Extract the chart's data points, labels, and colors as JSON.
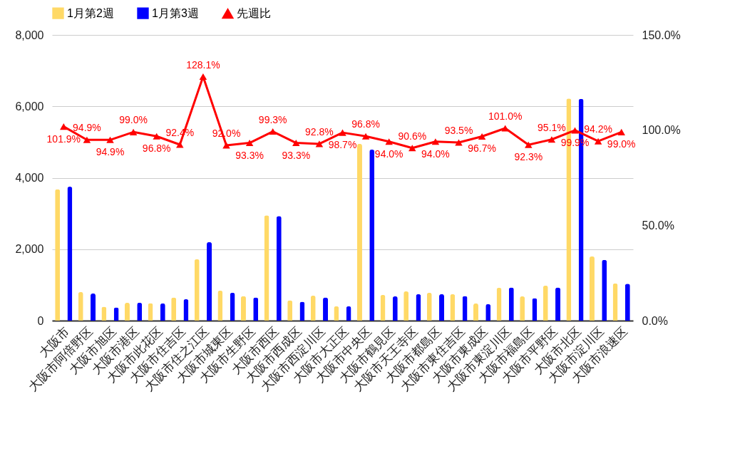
{
  "chart_data": {
    "type": "bar",
    "categories": [
      "大阪市",
      "大阪市阿倍野区",
      "大阪市旭区",
      "大阪市港区",
      "大阪市此花区",
      "大阪市住吉区",
      "大阪市住之江区",
      "大阪市城東区",
      "大阪市生野区",
      "大阪市西区",
      "大阪市西成区",
      "大阪市西淀川区",
      "大阪市大正区",
      "大阪市中央区",
      "大阪市鶴見区",
      "大阪市天王寺区",
      "大阪市都島区",
      "大阪市東住吉区",
      "大阪市東成区",
      "大阪市東淀川区",
      "大阪市福島区",
      "大阪市平野区",
      "大阪市北区",
      "大阪市淀川区",
      "大阪市浪速区"
    ],
    "series": [
      {
        "name": "1月第2週",
        "color": "#ffd966",
        "values": [
          3680,
          800,
          390,
          500,
          490,
          650,
          1720,
          840,
          690,
          2950,
          570,
          700,
          400,
          4950,
          720,
          820,
          780,
          740,
          480,
          920,
          680,
          980,
          6220,
          1800,
          1040
        ]
      },
      {
        "name": "1月第3週",
        "color": "#0000ff",
        "values": [
          3750,
          760,
          370,
          500,
          480,
          600,
          2200,
          780,
          650,
          2930,
          530,
          650,
          400,
          4790,
          680,
          740,
          740,
          690,
          460,
          930,
          630,
          930,
          6210,
          1700,
          1030
        ]
      },
      {
        "name": "先週比",
        "type": "line",
        "axis": "y2",
        "color": "#ff0000",
        "values": [
          101.9,
          94.9,
          94.9,
          99.0,
          96.8,
          92.4,
          128.1,
          92.0,
          93.3,
          99.3,
          93.3,
          92.8,
          98.7,
          96.8,
          94.0,
          90.6,
          94.0,
          93.5,
          96.7,
          101.0,
          92.3,
          95.1,
          99.9,
          94.2,
          99.0
        ],
        "value_labels": [
          "101.9%",
          "94.9%",
          "94.9%",
          "99.0%",
          "96.8%",
          "92.4%",
          "128.1%",
          "92.0%",
          "93.3%",
          "99.3%",
          "93.3%",
          "92.8%",
          "98.7%",
          "96.8%",
          "94.0%",
          "90.6%",
          "94.0%",
          "93.5%",
          "96.7%",
          "101.0%",
          "92.3%",
          "95.1%",
          "99.9%",
          "94.2%",
          "99.0%"
        ]
      }
    ],
    "ylim": [
      0,
      8000
    ],
    "yticks": [
      0,
      {
        "value": 2000,
        "label": "2,000"
      },
      {
        "value": 4000,
        "label": "4,000"
      },
      {
        "value": 6000,
        "label": "6,000"
      },
      {
        "value": 8000,
        "label": "8,000"
      }
    ],
    "y2lim": [
      0,
      150
    ],
    "y2ticks": [
      {
        "value": 0,
        "label": "0.0%"
      },
      {
        "value": 50,
        "label": "50.0%"
      },
      {
        "value": 100,
        "label": "100.0%"
      },
      {
        "value": 150,
        "label": "150.0%"
      }
    ],
    "grid": "y",
    "legend": "top",
    "marker": "triangle"
  }
}
